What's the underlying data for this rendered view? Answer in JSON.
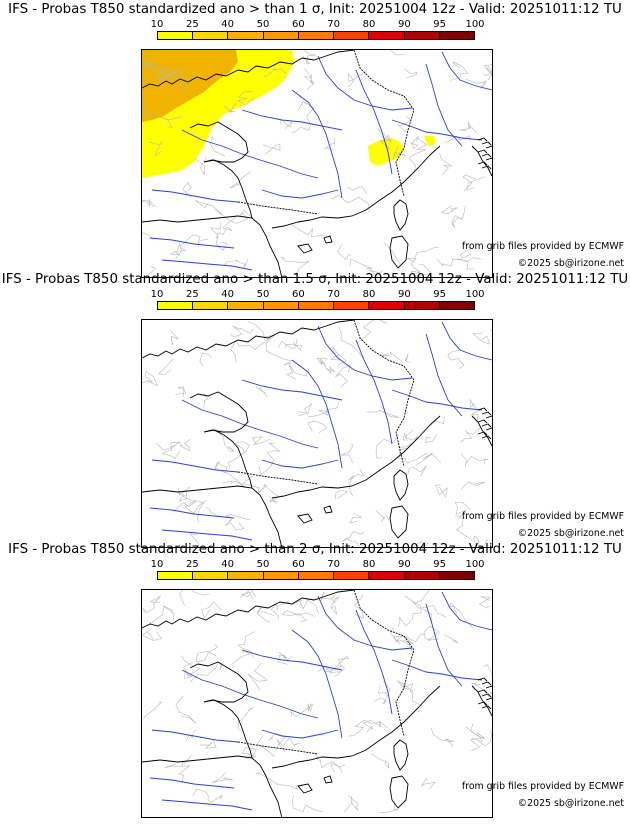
{
  "colorbar": {
    "ticks": [
      "10",
      "25",
      "40",
      "50",
      "60",
      "70",
      "80",
      "90",
      "95",
      "100"
    ],
    "colors": [
      "#ffff00",
      "#ffd700",
      "#ffb000",
      "#ff9800",
      "#ff7a00",
      "#ff4000",
      "#e00000",
      "#b00000",
      "#800000"
    ]
  },
  "panels": [
    {
      "title": "IFS - Probas T850  standardized ano > than 1 σ, Init: 20251004 12z - Valid: 20251011:12 TU",
      "source_credit": "from grib files provided by ECMWF",
      "copyright": "©2025 sb@irizone.net",
      "probability_areas": [
        {
          "region": "North-west (Brittany / Channel / Benelux)",
          "class": "25-40",
          "color": "#f0b400"
        },
        {
          "region": "Western and northern France",
          "class": "10-25",
          "color": "#ffff00"
        },
        {
          "region": "Alps",
          "class": "10-25",
          "color": "#ffff00"
        }
      ]
    },
    {
      "title": "IFS - Probas T850  standardized ano > than 1.5 σ, Init: 20251004 12z - Valid: 20251011:12 TU",
      "source_credit": "from grib files provided by ECMWF",
      "copyright": "©2025 sb@irizone.net",
      "probability_areas": []
    },
    {
      "title": "IFS - Probas T850  standardized ano > than 2 σ, Init: 20251004 12z - Valid: 20251011:12 TU",
      "source_credit": "from grib files provided by ECMWF",
      "copyright": "©2025 sb@irizone.net",
      "probability_areas": []
    }
  ]
}
